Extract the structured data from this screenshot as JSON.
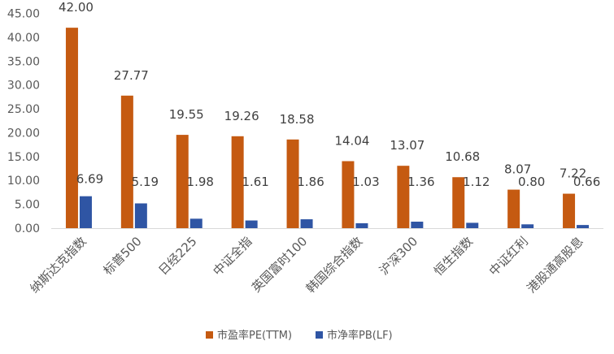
{
  "chart_data": {
    "type": "bar",
    "categories": [
      "纳斯达克指数",
      "标普500",
      "日经225",
      "中证全指",
      "英国富时100",
      "韩国综合指数",
      "沪深300",
      "恒生指数",
      "中证红利",
      "港股通高股息"
    ],
    "series": [
      {
        "name": "市盈率PE(TTM)",
        "color": "#C55A11",
        "values": [
          42.0,
          27.77,
          19.55,
          19.26,
          18.58,
          14.04,
          13.07,
          10.68,
          8.07,
          7.22
        ],
        "labels": [
          "42.00",
          "27.77",
          "19.55",
          "19.26",
          "18.58",
          "14.04",
          "13.07",
          "10.68",
          "8.07",
          "7.22"
        ]
      },
      {
        "name": "市净率PB(LF)",
        "color": "#2F55A4",
        "values": [
          6.69,
          5.19,
          1.98,
          1.61,
          1.86,
          1.03,
          1.36,
          1.12,
          0.8,
          0.66
        ],
        "labels": [
          "6.69",
          "5.19",
          "1.98",
          "1.61",
          "1.86",
          "1.03",
          "1.36",
          "1.12",
          "0.80",
          "0.66"
        ]
      }
    ],
    "ylim": [
      0,
      45
    ],
    "yticks": [
      "0.00",
      "5.00",
      "10.00",
      "15.00",
      "20.00",
      "25.00",
      "30.00",
      "35.00",
      "40.00",
      "45.00"
    ],
    "ytick_values": [
      0,
      5,
      10,
      15,
      20,
      25,
      30,
      35,
      40,
      45
    ],
    "grid": false,
    "legend_position": "bottom",
    "title": "",
    "xlabel": "",
    "ylabel": ""
  }
}
